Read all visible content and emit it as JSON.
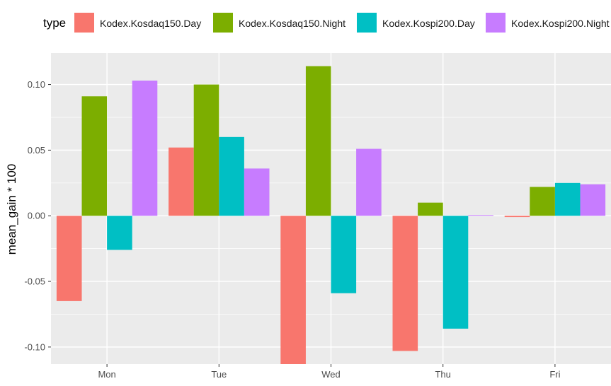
{
  "chart_data": {
    "type": "bar",
    "title": "",
    "xlabel": "",
    "ylabel": "mean_gain * 100",
    "legend_title": "type",
    "legend_position": "top",
    "categories": [
      "Mon",
      "Tue",
      "Wed",
      "Thu",
      "Fri"
    ],
    "series": [
      {
        "name": "Kodex.Kosdaq150.Day",
        "color": "#F8766D",
        "values": [
          -0.065,
          0.052,
          -0.113,
          -0.103,
          -0.001
        ]
      },
      {
        "name": "Kodex.Kosdaq150.Night",
        "color": "#7CAE00",
        "values": [
          0.091,
          0.1,
          0.114,
          0.01,
          0.022
        ]
      },
      {
        "name": "Kodex.Kospi200.Day",
        "color": "#00BFC4",
        "values": [
          -0.026,
          0.06,
          -0.059,
          -0.086,
          0.025
        ]
      },
      {
        "name": "Kodex.Kospi200.Night",
        "color": "#C77CFF",
        "values": [
          0.103,
          0.036,
          0.051,
          0.0005,
          0.024
        ]
      }
    ],
    "ylim": [
      -0.113,
      0.124
    ],
    "yticks": [
      0.1,
      0.05,
      0.0,
      -0.05,
      -0.1
    ],
    "ytick_labels": [
      "0.10",
      "0.05",
      "0.00",
      "-0.05",
      "-0.10"
    ],
    "grid": true
  }
}
